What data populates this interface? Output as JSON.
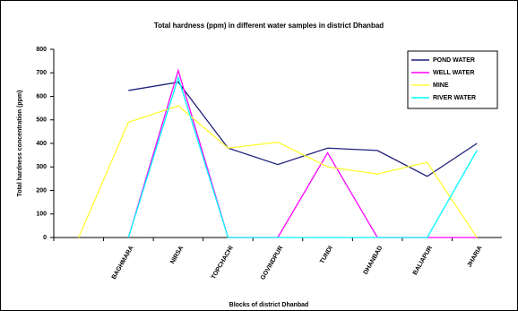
{
  "chart_data": {
    "type": "line",
    "title": "Total hardness (ppm) in different water samples in district Dhanbad",
    "x_label": "Blocks of district Dhanbad",
    "y_label": "Total hardness concentration (ppm)",
    "categories": [
      null,
      "BAGHMARA",
      "NIRSA",
      "TOPCHACHI",
      "GOVINDPUR",
      "TUNDI",
      "DHANBAD",
      "BALIAPUR",
      "JHARIA"
    ],
    "series": [
      {
        "name": "POND WATER",
        "color": "#1f1f7a",
        "values": [
          null,
          625,
          660,
          380,
          310,
          380,
          370,
          260,
          400
        ]
      },
      {
        "name": "WELL WATER",
        "color": "#ff00ff",
        "values": [
          null,
          0,
          710,
          0,
          0,
          360,
          0,
          0,
          0
        ]
      },
      {
        "name": "MINE",
        "color": "#ffff33",
        "values": [
          0,
          490,
          560,
          380,
          405,
          300,
          270,
          320,
          0
        ]
      },
      {
        "name": "RIVER WATER",
        "color": "#00ffff",
        "values": [
          null,
          0,
          680,
          0,
          0,
          0,
          0,
          0,
          370
        ]
      }
    ],
    "ylim": [
      0,
      800
    ],
    "yticks": [
      0,
      100,
      200,
      300,
      400,
      500,
      600,
      700,
      800
    ],
    "legend": "upper right"
  }
}
